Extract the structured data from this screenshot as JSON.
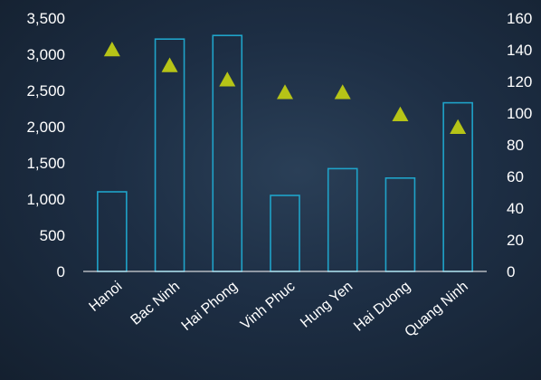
{
  "chart_data": {
    "type": "bar",
    "categories": [
      "Hanoi",
      "Bac Ninh",
      "Hai Phong",
      "Vinh Phuc",
      "Hung Yen",
      "Hai Duong",
      "Quang Ninh"
    ],
    "series": [
      {
        "type": "bar",
        "axis": "left",
        "values": [
          1100,
          3210,
          3260,
          1050,
          1420,
          1290,
          2330
        ],
        "color": "#1fa3c9"
      },
      {
        "type": "scatter",
        "marker": "triangle",
        "axis": "right",
        "values": [
          140,
          130,
          121,
          113,
          113,
          99,
          91
        ],
        "color": "#b6c417"
      }
    ],
    "y_left": {
      "lim": [
        0,
        3500
      ],
      "ticks": [
        0,
        500,
        1000,
        1500,
        2000,
        2500,
        3000,
        3500
      ],
      "tick_labels": [
        "0",
        "500",
        "1,000",
        "1,500",
        "2,000",
        "2,500",
        "3,000",
        "3,500"
      ]
    },
    "y_right": {
      "lim": [
        0,
        160
      ],
      "ticks": [
        0,
        20,
        40,
        60,
        80,
        100,
        120,
        140,
        160
      ],
      "tick_labels": [
        "0",
        "20",
        "40",
        "60",
        "80",
        "100",
        "120",
        "140",
        "160"
      ]
    },
    "title": "",
    "xlabel": "",
    "ylabel": "",
    "grid": false,
    "legend": "none",
    "background": "#1d2e44",
    "axis_color": "#ffffff"
  }
}
